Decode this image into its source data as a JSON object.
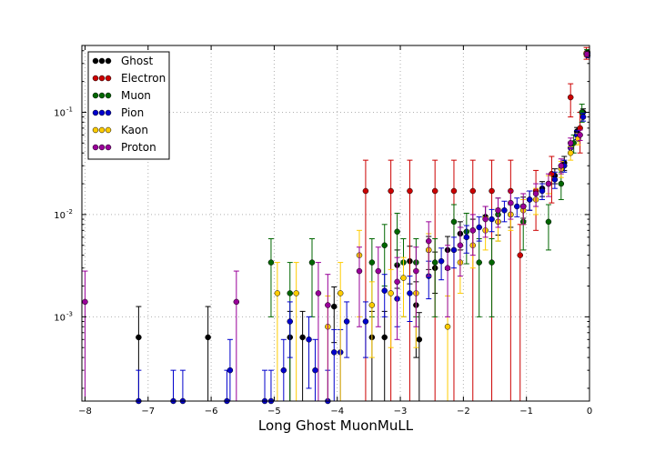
{
  "chart_data": {
    "type": "scatter",
    "title": "",
    "xlabel": "Long Ghost MuonMuLL",
    "ylabel": "",
    "xlim": [
      -8.05,
      0.0
    ],
    "ylim": [
      0.00015,
      0.45
    ],
    "yscale": "log",
    "grid": true,
    "legend_position": "top-left",
    "x_ticks": [
      {
        "value": -8,
        "label": "−8"
      },
      {
        "value": -7,
        "label": "−7"
      },
      {
        "value": -6,
        "label": "−6"
      },
      {
        "value": -5,
        "label": "−5"
      },
      {
        "value": -4,
        "label": "−4"
      },
      {
        "value": -3,
        "label": "−3"
      },
      {
        "value": -2,
        "label": "−2"
      },
      {
        "value": -1,
        "label": "−1"
      },
      {
        "value": 0,
        "label": "0"
      }
    ],
    "y_ticks": [
      {
        "value": 0.001,
        "label": "10",
        "exp": "-3"
      },
      {
        "value": 0.01,
        "label": "10",
        "exp": "-2"
      },
      {
        "value": 0.1,
        "label": "10",
        "exp": "-1"
      }
    ],
    "series": [
      {
        "name": "Ghost",
        "color": "#000000",
        "points": [
          [
            -7.15,
            0.00063,
            0.00063
          ],
          [
            -6.05,
            0.00063,
            0.00063
          ],
          [
            -4.75,
            0.00063,
            0.0005
          ],
          [
            -4.55,
            0.00063,
            0.0005
          ],
          [
            -4.05,
            0.00126,
            0.0007
          ],
          [
            -3.45,
            0.00063,
            0.0005
          ],
          [
            -3.25,
            0.00063,
            0.0005
          ],
          [
            -3.05,
            0.0032,
            0.0013
          ],
          [
            -2.85,
            0.0035,
            0.0014
          ],
          [
            -2.75,
            0.0013,
            0.0009
          ],
          [
            -2.7,
            0.0006,
            0.0005
          ],
          [
            -2.55,
            0.0045,
            0.0016
          ],
          [
            -2.45,
            0.003,
            0.0013
          ],
          [
            -2.25,
            0.0045,
            0.0016
          ],
          [
            -2.05,
            0.0065,
            0.002
          ],
          [
            -1.85,
            0.007,
            0.002
          ],
          [
            -1.65,
            0.0095,
            0.0025
          ],
          [
            -1.45,
            0.0085,
            0.0022
          ],
          [
            -1.25,
            0.01,
            0.0025
          ],
          [
            -1.05,
            0.012,
            0.0028
          ],
          [
            -0.95,
            0.014,
            0.003
          ],
          [
            -0.75,
            0.018,
            0.003
          ],
          [
            -0.55,
            0.024,
            0.004
          ],
          [
            -0.4,
            0.032,
            0.005
          ],
          [
            -0.3,
            0.045,
            0.005
          ],
          [
            -0.2,
            0.065,
            0.006
          ],
          [
            -0.1,
            0.1,
            0.008
          ],
          [
            -0.03,
            0.38,
            0.015
          ]
        ]
      },
      {
        "name": "Electron",
        "color": "#cc0000",
        "points": [
          [
            -3.55,
            0.017,
            0.017
          ],
          [
            -3.15,
            0.017,
            0.017
          ],
          [
            -2.85,
            0.017,
            0.017
          ],
          [
            -2.45,
            0.017,
            0.017
          ],
          [
            -2.15,
            0.017,
            0.017
          ],
          [
            -1.85,
            0.017,
            0.017
          ],
          [
            -1.55,
            0.017,
            0.017
          ],
          [
            -1.25,
            0.017,
            0.017
          ],
          [
            -1.1,
            0.004,
            0.004
          ],
          [
            -0.85,
            0.017,
            0.01
          ],
          [
            -0.6,
            0.025,
            0.012
          ],
          [
            -0.3,
            0.14,
            0.05
          ],
          [
            -0.15,
            0.07,
            0.03
          ],
          [
            -0.05,
            0.38,
            0.05
          ]
        ]
      },
      {
        "name": "Muon",
        "color": "#006600",
        "points": [
          [
            -5.05,
            0.0034,
            0.0024
          ],
          [
            -4.75,
            0.0017,
            0.0017
          ],
          [
            -4.4,
            0.0034,
            0.0024
          ],
          [
            -3.45,
            0.0034,
            0.0024
          ],
          [
            -3.25,
            0.005,
            0.003
          ],
          [
            -3.05,
            0.0068,
            0.0035
          ],
          [
            -2.95,
            0.0034,
            0.0024
          ],
          [
            -2.75,
            0.0034,
            0.0024
          ],
          [
            -2.45,
            0.0034,
            0.0024
          ],
          [
            -2.15,
            0.0085,
            0.004
          ],
          [
            -1.95,
            0.0068,
            0.0035
          ],
          [
            -1.75,
            0.0034,
            0.0024
          ],
          [
            -1.55,
            0.0034,
            0.0024
          ],
          [
            -1.45,
            0.01,
            0.0045
          ],
          [
            -1.05,
            0.0085,
            0.004
          ],
          [
            -0.65,
            0.0085,
            0.004
          ],
          [
            -0.45,
            0.02,
            0.006
          ],
          [
            -0.25,
            0.05,
            0.01
          ],
          [
            -0.12,
            0.1,
            0.02
          ],
          [
            -0.04,
            0.38,
            0.03
          ]
        ]
      },
      {
        "name": "Pion",
        "color": "#0000cc",
        "points": [
          [
            -7.15,
            0.00015,
            0.00015
          ],
          [
            -6.6,
            0.00015,
            0.00015
          ],
          [
            -6.45,
            0.00015,
            0.00015
          ],
          [
            -5.75,
            0.00015,
            0.00015
          ],
          [
            -5.7,
            0.0003,
            0.0003
          ],
          [
            -5.15,
            0.00015,
            0.00015
          ],
          [
            -5.05,
            0.00015,
            0.00015
          ],
          [
            -4.85,
            0.0003,
            0.0003
          ],
          [
            -4.75,
            0.0009,
            0.0005
          ],
          [
            -4.45,
            0.0006,
            0.0004
          ],
          [
            -4.35,
            0.0003,
            0.0003
          ],
          [
            -4.15,
            0.00015,
            0.00015
          ],
          [
            -4.05,
            0.00045,
            0.0003
          ],
          [
            -3.95,
            0.00045,
            0.0003
          ],
          [
            -3.85,
            0.0009,
            0.0005
          ],
          [
            -3.55,
            0.0009,
            0.0005
          ],
          [
            -3.25,
            0.0018,
            0.0008
          ],
          [
            -3.05,
            0.0015,
            0.0007
          ],
          [
            -2.85,
            0.0017,
            0.0008
          ],
          [
            -2.55,
            0.0025,
            0.001
          ],
          [
            -2.35,
            0.0035,
            0.0012
          ],
          [
            -2.15,
            0.0045,
            0.0015
          ],
          [
            -1.95,
            0.006,
            0.0018
          ],
          [
            -1.75,
            0.0075,
            0.002
          ],
          [
            -1.55,
            0.009,
            0.0022
          ],
          [
            -1.35,
            0.011,
            0.0025
          ],
          [
            -1.15,
            0.012,
            0.0025
          ],
          [
            -0.95,
            0.014,
            0.003
          ],
          [
            -0.75,
            0.017,
            0.003
          ],
          [
            -0.55,
            0.022,
            0.004
          ],
          [
            -0.4,
            0.03,
            0.004
          ],
          [
            -0.3,
            0.045,
            0.005
          ],
          [
            -0.2,
            0.06,
            0.006
          ],
          [
            -0.1,
            0.09,
            0.008
          ],
          [
            -0.03,
            0.36,
            0.015
          ]
        ]
      },
      {
        "name": "Kaon",
        "color": "#ffcc00",
        "points": [
          [
            -4.95,
            0.0017,
            0.0017
          ],
          [
            -4.65,
            0.0017,
            0.0017
          ],
          [
            -4.15,
            0.0008,
            0.0008
          ],
          [
            -3.95,
            0.0017,
            0.0017
          ],
          [
            -3.65,
            0.004,
            0.003
          ],
          [
            -3.45,
            0.0013,
            0.0009
          ],
          [
            -3.15,
            0.0017,
            0.0012
          ],
          [
            -2.95,
            0.0024,
            0.0014
          ],
          [
            -2.75,
            0.0017,
            0.0012
          ],
          [
            -2.55,
            0.0045,
            0.002
          ],
          [
            -2.25,
            0.0008,
            0.0008
          ],
          [
            -2.05,
            0.0034,
            0.0017
          ],
          [
            -1.85,
            0.005,
            0.002
          ],
          [
            -1.65,
            0.007,
            0.0025
          ],
          [
            -1.45,
            0.0085,
            0.003
          ],
          [
            -1.25,
            0.01,
            0.003
          ],
          [
            -1.05,
            0.011,
            0.003
          ],
          [
            -0.85,
            0.014,
            0.004
          ],
          [
            -0.65,
            0.02,
            0.004
          ],
          [
            -0.45,
            0.028,
            0.005
          ],
          [
            -0.3,
            0.04,
            0.006
          ],
          [
            -0.18,
            0.055,
            0.007
          ],
          [
            -0.05,
            0.37,
            0.02
          ]
        ]
      },
      {
        "name": "Proton",
        "color": "#990099",
        "points": [
          [
            -8.0,
            0.0014,
            0.0014
          ],
          [
            -5.6,
            0.0014,
            0.0014
          ],
          [
            -4.3,
            0.0017,
            0.0017
          ],
          [
            -4.15,
            0.0013,
            0.0013
          ],
          [
            -3.65,
            0.0028,
            0.002
          ],
          [
            -3.35,
            0.0028,
            0.002
          ],
          [
            -3.05,
            0.0022,
            0.0016
          ],
          [
            -2.75,
            0.0028,
            0.002
          ],
          [
            -2.55,
            0.0055,
            0.003
          ],
          [
            -2.25,
            0.003,
            0.002
          ],
          [
            -2.05,
            0.005,
            0.0025
          ],
          [
            -1.85,
            0.007,
            0.003
          ],
          [
            -1.65,
            0.009,
            0.003
          ],
          [
            -1.45,
            0.011,
            0.0035
          ],
          [
            -1.25,
            0.013,
            0.004
          ],
          [
            -1.05,
            0.012,
            0.004
          ],
          [
            -0.85,
            0.016,
            0.004
          ],
          [
            -0.65,
            0.02,
            0.005
          ],
          [
            -0.45,
            0.03,
            0.005
          ],
          [
            -0.3,
            0.05,
            0.006
          ],
          [
            -0.15,
            0.06,
            0.007
          ],
          [
            -0.04,
            0.37,
            0.02
          ]
        ]
      }
    ]
  }
}
